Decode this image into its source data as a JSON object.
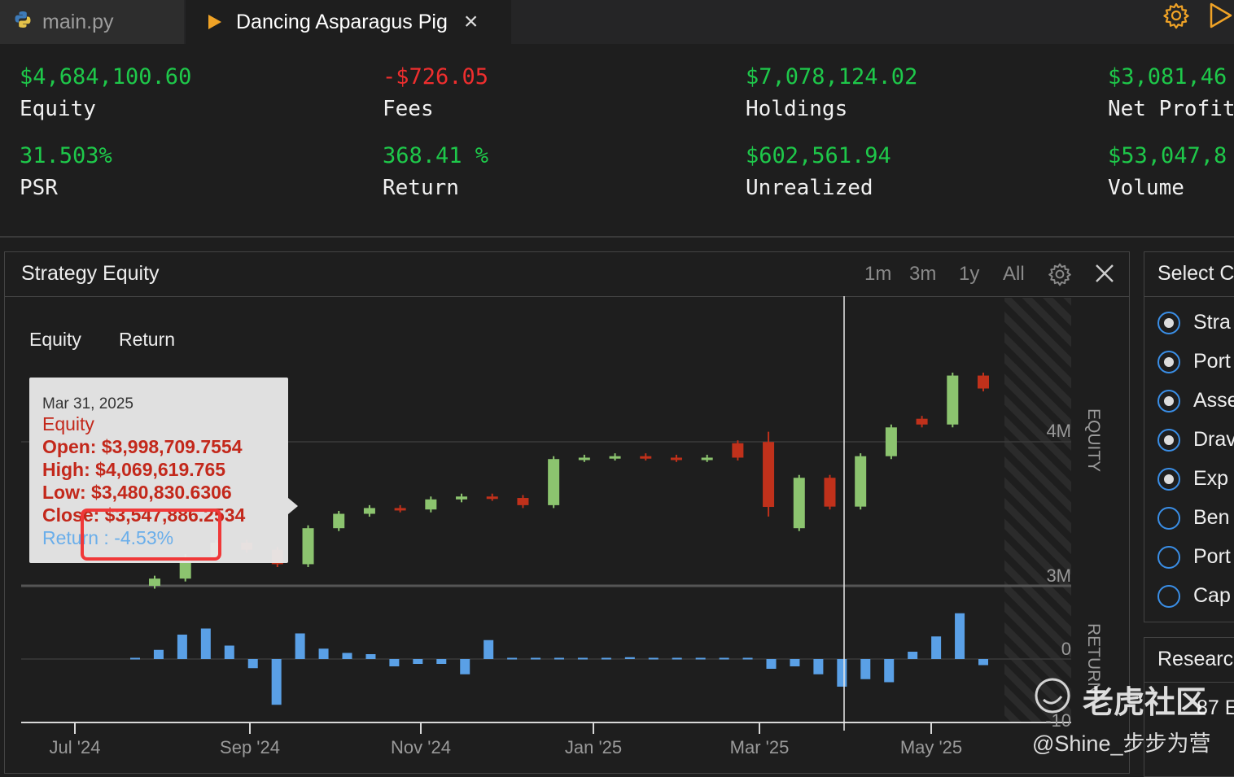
{
  "tabs": [
    {
      "label": "main.py",
      "icon": "python-icon"
    },
    {
      "label": "Dancing Asparagus Pig",
      "icon": "run-triangle-icon"
    }
  ],
  "toolbar": {
    "settings_icon": "gear-icon",
    "run_icon": "play-icon"
  },
  "stats": [
    {
      "value": "$4,684,100.60",
      "label": "Equity",
      "color": "#1ec84a"
    },
    {
      "value": "-$726.05",
      "label": "Fees",
      "color": "#ee2e2e"
    },
    {
      "value": "$7,078,124.02",
      "label": "Holdings",
      "color": "#1ec84a"
    },
    {
      "value": "$3,081,46",
      "label": "Net Profit",
      "color": "#1ec84a"
    },
    {
      "value": "31.503%",
      "label": "PSR",
      "color": "#1ec84a"
    },
    {
      "value": "368.41 %",
      "label": "Return",
      "color": "#1ec84a"
    },
    {
      "value": "$602,561.94",
      "label": "Unrealized",
      "color": "#1ec84a"
    },
    {
      "value": "$53,047,8",
      "label": "Volume",
      "color": "#1ec84a"
    }
  ],
  "panel": {
    "title": "Strategy Equity",
    "ranges": [
      "1m",
      "3m",
      "1y",
      "All"
    ],
    "legend": [
      "Equity",
      "Return"
    ]
  },
  "tooltip": {
    "date": "Mar 31, 2025",
    "series": "Equity",
    "open": "Open: $3,998,709.7554",
    "high": "High: $4,069,619.765",
    "low": "Low: $3,480,830.6306",
    "close": "Close: $3,547,886.2534",
    "return": "Return : -4.53%"
  },
  "right_panel": {
    "title": "Select C",
    "options": [
      {
        "label": "Stra",
        "checked": true
      },
      {
        "label": "Port",
        "checked": true
      },
      {
        "label": "Asse",
        "checked": true
      },
      {
        "label": "Drav",
        "checked": true
      },
      {
        "label": "Exp",
        "checked": true
      },
      {
        "label": "Ben",
        "checked": false
      },
      {
        "label": "Port",
        "checked": false
      },
      {
        "label": "Cap",
        "checked": false
      }
    ]
  },
  "research_panel": {
    "title": "Researc",
    "text": "87 E"
  },
  "watermark": {
    "site": "老虎社区",
    "handle": "@Shine_步步为营"
  },
  "chart_data": [
    {
      "type": "candlestick",
      "title": "",
      "ylabel": "EQUITY",
      "y_ticks": [
        "4M",
        "3M"
      ],
      "x_ticks": [
        "Jul '24",
        "Sep '24",
        "Nov '24",
        "Jan '25",
        "Mar '25",
        "May '25"
      ],
      "colors": {
        "up": "#8cc46f",
        "down": "#c0311b"
      },
      "candles": [
        {
          "date": "2024-07",
          "open": 3.0,
          "close": 3.05
        },
        {
          "date": "2024-08",
          "open": 3.05,
          "close": 3.2
        },
        {
          "date": "2024-08",
          "open": 3.2,
          "close": 3.3
        },
        {
          "date": "2024-09",
          "open": 3.3,
          "close": 3.25
        },
        {
          "date": "2024-09",
          "open": 3.25,
          "close": 3.15
        },
        {
          "date": "2024-09",
          "open": 3.15,
          "close": 3.4
        },
        {
          "date": "2024-10",
          "open": 3.4,
          "close": 3.5
        },
        {
          "date": "2024-10",
          "open": 3.5,
          "close": 3.54
        },
        {
          "date": "2024-10",
          "open": 3.54,
          "close": 3.53
        },
        {
          "date": "2024-10",
          "open": 3.53,
          "close": 3.6
        },
        {
          "date": "2024-10",
          "open": 3.6,
          "close": 3.62
        },
        {
          "date": "2024-11",
          "open": 3.62,
          "close": 3.61
        },
        {
          "date": "2024-11",
          "open": 3.61,
          "close": 3.56
        },
        {
          "date": "2024-11",
          "open": 3.56,
          "close": 3.88
        },
        {
          "date": "2024-12",
          "open": 3.88,
          "close": 3.89
        },
        {
          "date": "2025-01",
          "open": 3.89,
          "close": 3.9
        },
        {
          "date": "2025-02",
          "open": 3.9,
          "close": 3.89
        },
        {
          "date": "2025-03",
          "open": 3.89,
          "close": 3.88
        },
        {
          "date": "2025-03",
          "open": 3.88,
          "close": 3.89
        },
        {
          "date": "2025-03",
          "open": 3.99,
          "close": 3.89
        },
        {
          "date": "2025-03-31",
          "open": 3.9987,
          "high": 4.0696,
          "low": 3.4808,
          "close": 3.5479
        },
        {
          "date": "2025-04",
          "open": 3.4,
          "close": 3.75
        },
        {
          "date": "2025-04",
          "open": 3.75,
          "close": 3.55
        },
        {
          "date": "2025-04",
          "open": 3.55,
          "close": 3.9
        },
        {
          "date": "2025-04",
          "open": 3.9,
          "close": 4.1
        },
        {
          "date": "2025-05",
          "open": 4.16,
          "close": 4.12
        },
        {
          "date": "2025-05",
          "open": 4.12,
          "close": 4.46
        },
        {
          "date": "2025-05",
          "open": 4.46,
          "close": 4.37
        }
      ]
    },
    {
      "type": "bar",
      "title": "",
      "ylabel": "RETURN",
      "y_ticks": [
        "0",
        "-10"
      ],
      "color": "#5aa0e6",
      "values": [
        0.2,
        1.5,
        4,
        5,
        2.2,
        -1.5,
        -7.5,
        4.2,
        1.7,
        1,
        0.8,
        -1.2,
        -0.8,
        -0.8,
        -2.5,
        3.1,
        0.2,
        0.2,
        0.2,
        0.2,
        0.2,
        0.3,
        0.2,
        0.2,
        0.2,
        0.2,
        0.2,
        -1.6,
        -1.2,
        -2.5,
        -4.53,
        -3.3,
        -3.8,
        1.2,
        3.7,
        7.5,
        -1
      ]
    }
  ]
}
